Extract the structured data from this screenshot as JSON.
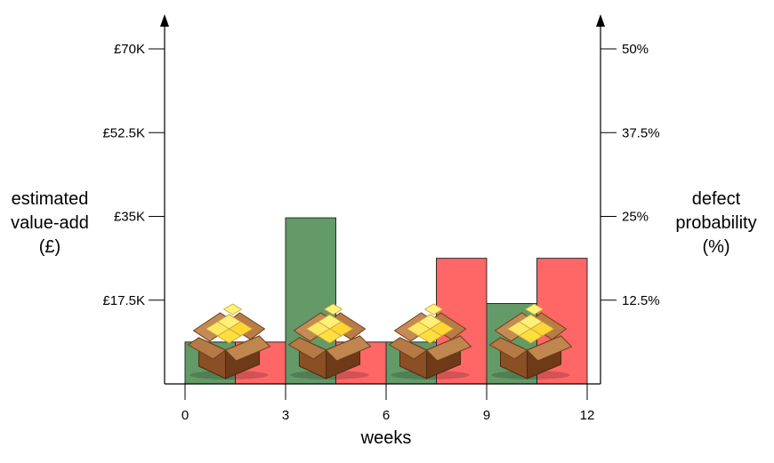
{
  "chart_data": {
    "type": "bar",
    "xlabel": "weeks",
    "ylabel_left": [
      "estimated",
      "value-add",
      "(£)"
    ],
    "ylabel_right": [
      "defect",
      "probability",
      "(%)"
    ],
    "x_ticks": [
      "0",
      "3",
      "6",
      "9",
      "12"
    ],
    "x_range": [
      0,
      12
    ],
    "left_axis": {
      "ylim": [
        0,
        70000
      ],
      "ticks": [
        {
          "value": 17500,
          "label": "£17.5K"
        },
        {
          "value": 35000,
          "label": "£35K"
        },
        {
          "value": 52500,
          "label": "£52.5K"
        },
        {
          "value": 70000,
          "label": "£70K"
        }
      ]
    },
    "right_axis": {
      "ylim": [
        0,
        50
      ],
      "ticks": [
        {
          "value": 12.5,
          "label": "12.5%"
        },
        {
          "value": 25,
          "label": "25%"
        },
        {
          "value": 37.5,
          "label": "37.5%"
        },
        {
          "value": 50,
          "label": "50%"
        }
      ]
    },
    "grid": false,
    "series": [
      {
        "axis": "left",
        "color": "#639a67",
        "bars": [
          {
            "x_start": 0,
            "x_end": 1.5,
            "value": 8750
          },
          {
            "x_start": 3,
            "x_end": 4.5,
            "value": 34700
          },
          {
            "x_start": 6,
            "x_end": 7.5,
            "value": 8750
          },
          {
            "x_start": 9,
            "x_end": 10.5,
            "value": 16800
          }
        ]
      },
      {
        "axis": "right",
        "color": "#ff6666",
        "bars": [
          {
            "x_start": 1.5,
            "x_end": 3,
            "value": 6.25
          },
          {
            "x_start": 4.5,
            "x_end": 6,
            "value": 6.25
          },
          {
            "x_start": 7.5,
            "x_end": 9,
            "value": 18.75
          },
          {
            "x_start": 10.5,
            "x_end": 12,
            "value": 18.75
          }
        ]
      }
    ],
    "package_icons": [
      {
        "name": "package-icon",
        "x_center": 1.5
      },
      {
        "name": "package-icon",
        "x_center": 4.5
      },
      {
        "name": "package-icon",
        "x_center": 7.5
      },
      {
        "name": "package-icon",
        "x_center": 10.5
      }
    ]
  }
}
